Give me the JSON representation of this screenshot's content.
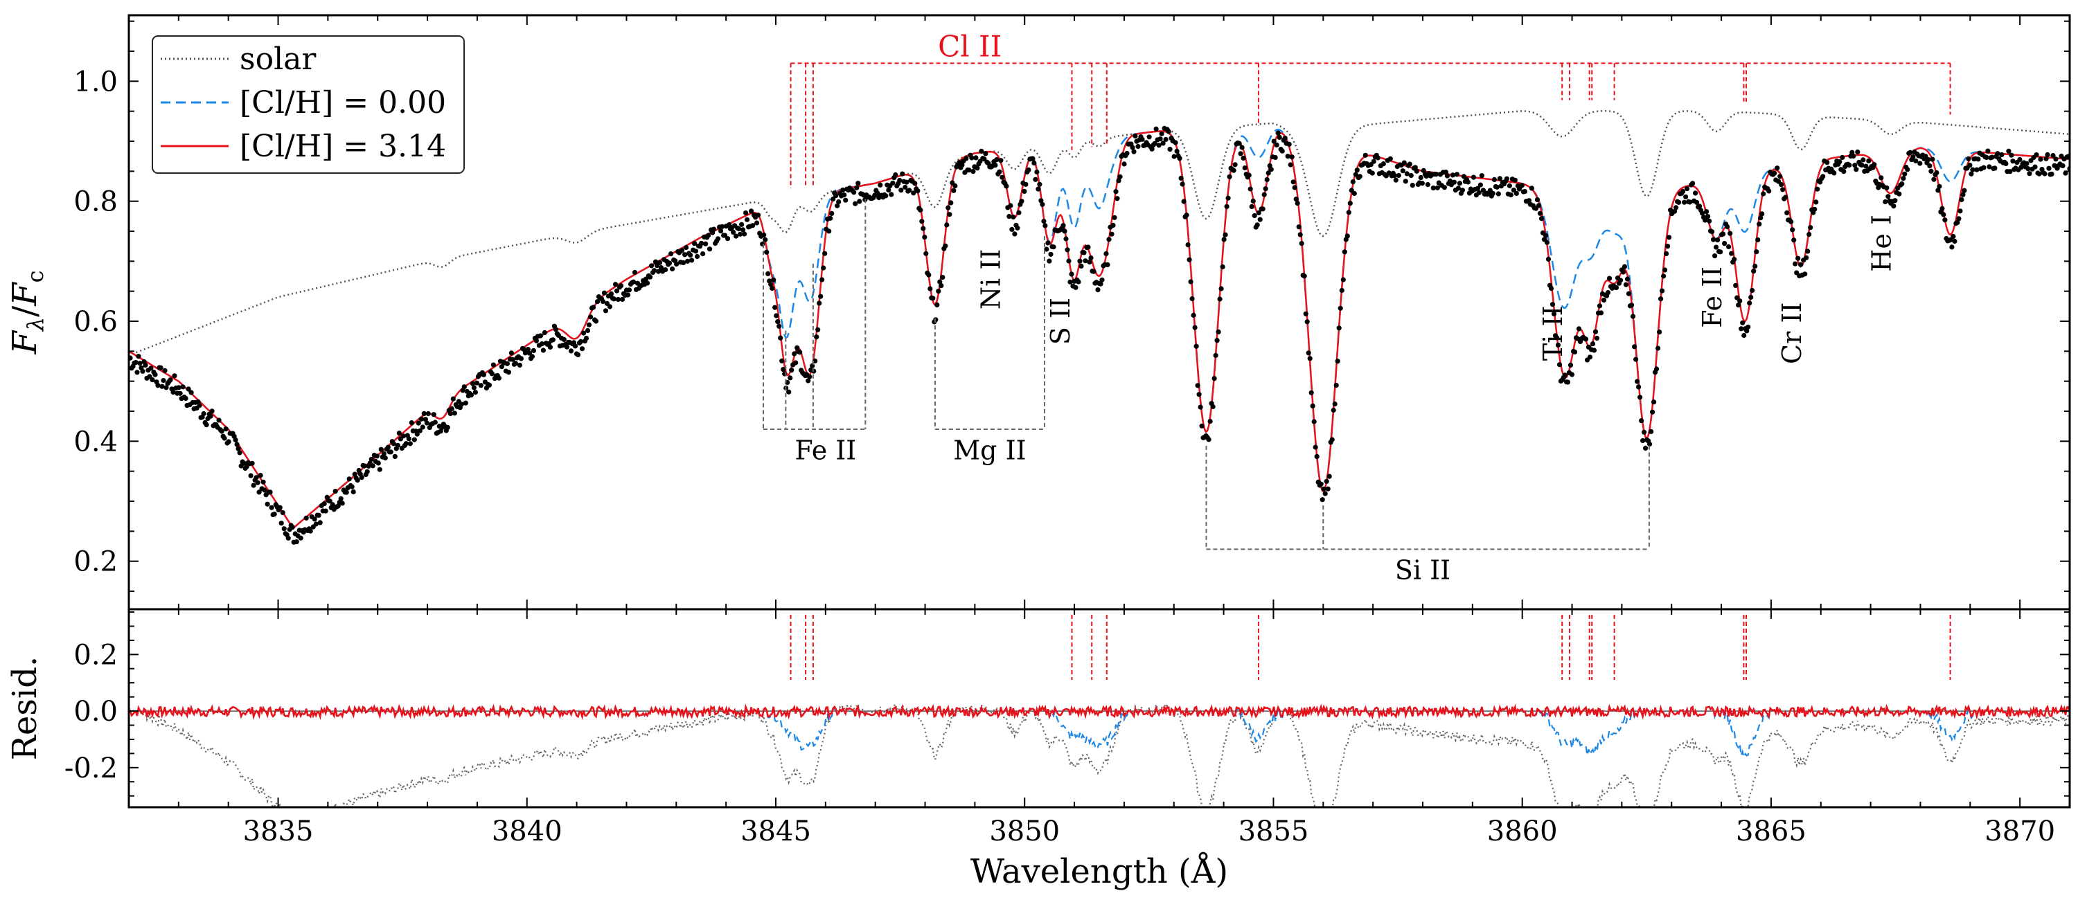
{
  "chart_data": {
    "type": "line",
    "xlabel": "Wavelength (Å)",
    "xlim": [
      3832,
      3871
    ],
    "xticks": [
      3835,
      3840,
      3845,
      3850,
      3855,
      3860,
      3865,
      3870
    ],
    "top_panel": {
      "ylabel": "F_λ/F_c",
      "ylim": [
        0.12,
        1.11
      ],
      "yticks": [
        0.2,
        0.4,
        0.6,
        0.8,
        1.0
      ],
      "legend": {
        "position": "upper-left",
        "entries": [
          {
            "label": "solar",
            "color": "#555555",
            "style": "dotted"
          },
          {
            "label": "[Cl/H] = 0.00",
            "color": "#1e88e5",
            "style": "dashed"
          },
          {
            "label": "[Cl/H] = 3.14",
            "color": "#e8121b",
            "style": "solid"
          }
        ]
      },
      "continuum_points": [
        [
          3832,
          0.56
        ],
        [
          3835,
          0.66
        ],
        [
          3838,
          0.72
        ],
        [
          3841,
          0.77
        ],
        [
          3845,
          0.83
        ],
        [
          3848,
          0.86
        ],
        [
          3852,
          0.91
        ],
        [
          3856,
          0.95
        ],
        [
          3860,
          0.98
        ],
        [
          3864,
          0.98
        ],
        [
          3868,
          0.96
        ],
        [
          3871,
          0.94
        ]
      ],
      "envelope_points": [
        [
          3832,
          0.55
        ],
        [
          3833,
          0.5
        ],
        [
          3834,
          0.42
        ],
        [
          3835.3,
          0.255
        ],
        [
          3836.5,
          0.34
        ],
        [
          3838,
          0.45
        ],
        [
          3840,
          0.56
        ],
        [
          3842,
          0.67
        ],
        [
          3843.5,
          0.74
        ],
        [
          3845,
          0.8
        ],
        [
          3847,
          0.83
        ],
        [
          3849,
          0.88
        ],
        [
          3851,
          0.9
        ],
        [
          3853,
          0.92
        ],
        [
          3855,
          0.93
        ],
        [
          3858,
          0.85
        ],
        [
          3860,
          0.83
        ],
        [
          3862,
          0.8
        ],
        [
          3864,
          0.84
        ],
        [
          3866,
          0.87
        ],
        [
          3868,
          0.89
        ],
        [
          3871,
          0.87
        ]
      ],
      "absorption_lines": [
        {
          "w": 3838.3,
          "depth": 0.06,
          "width": 0.15
        },
        {
          "w": 3841.0,
          "depth": 0.07,
          "width": 0.2
        },
        {
          "w": 3845.2,
          "depth": 0.24,
          "width": 0.15
        },
        {
          "w": 3844.9,
          "depth": 0.1,
          "width": 0.12
        },
        {
          "w": 3845.7,
          "depth": 0.12,
          "width": 0.15
        },
        {
          "w": 3848.2,
          "depth": 0.27,
          "width": 0.18
        },
        {
          "w": 3849.8,
          "depth": 0.13,
          "width": 0.15
        },
        {
          "w": 3850.5,
          "depth": 0.18,
          "width": 0.15
        },
        {
          "w": 3851.0,
          "depth": 0.1,
          "width": 0.12
        },
        {
          "w": 3851.5,
          "depth": 0.05,
          "width": 0.12
        },
        {
          "w": 3853.65,
          "depth": 0.55,
          "width": 0.25
        },
        {
          "w": 3856.0,
          "depth": 0.65,
          "width": 0.28
        },
        {
          "w": 3860.8,
          "depth": 0.15,
          "width": 0.25
        },
        {
          "w": 3862.5,
          "depth": 0.5,
          "width": 0.22
        },
        {
          "w": 3863.9,
          "depth": 0.12,
          "width": 0.18
        },
        {
          "w": 3865.6,
          "depth": 0.2,
          "width": 0.18
        },
        {
          "w": 3867.4,
          "depth": 0.08,
          "width": 0.2
        }
      ],
      "cl_ii_lines": [
        3845.3,
        3845.6,
        3845.75,
        3850.95,
        3851.35,
        3851.65,
        3854.7,
        3860.8,
        3860.95,
        3861.35,
        3861.4,
        3861.85,
        3864.45,
        3864.5,
        3868.6
      ],
      "cl_ii_label": "Cl II",
      "ion_labels": [
        {
          "text": "Fe II",
          "w": 3846.0,
          "y": 0.37,
          "rotate": false
        },
        {
          "text": "Mg II",
          "w": 3849.3,
          "y": 0.37,
          "rotate": false
        },
        {
          "text": "Si II",
          "w": 3858.0,
          "y": 0.17,
          "rotate": false
        },
        {
          "text": "Ni II",
          "w": 3849.5,
          "y": 0.67,
          "rotate": true
        },
        {
          "text": "S II",
          "w": 3850.9,
          "y": 0.6,
          "rotate": true
        },
        {
          "text": "Ti II",
          "w": 3860.8,
          "y": 0.58,
          "rotate": true
        },
        {
          "text": "Fe II",
          "w": 3864.0,
          "y": 0.64,
          "rotate": true
        },
        {
          "text": "Cr II",
          "w": 3865.6,
          "y": 0.58,
          "rotate": true
        },
        {
          "text": "He I",
          "w": 3867.4,
          "y": 0.73,
          "rotate": true
        }
      ],
      "line_groups": [
        {
          "ion": "Fe II",
          "lines": [
            3844.75,
            3845.2,
            3845.75,
            3846.8
          ],
          "y_bottom": 0.42
        },
        {
          "ion": "Mg II",
          "lines": [
            3848.2,
            3850.4
          ],
          "y_bottom": 0.42
        },
        {
          "ion": "Si II",
          "lines": [
            3853.65,
            3856.0,
            3862.55
          ],
          "y_bottom": 0.22
        }
      ]
    },
    "bottom_panel": {
      "ylabel": "Resid.",
      "ylim": [
        -0.34,
        0.36
      ],
      "yticks": [
        -0.2,
        0.0,
        0.2
      ]
    }
  }
}
